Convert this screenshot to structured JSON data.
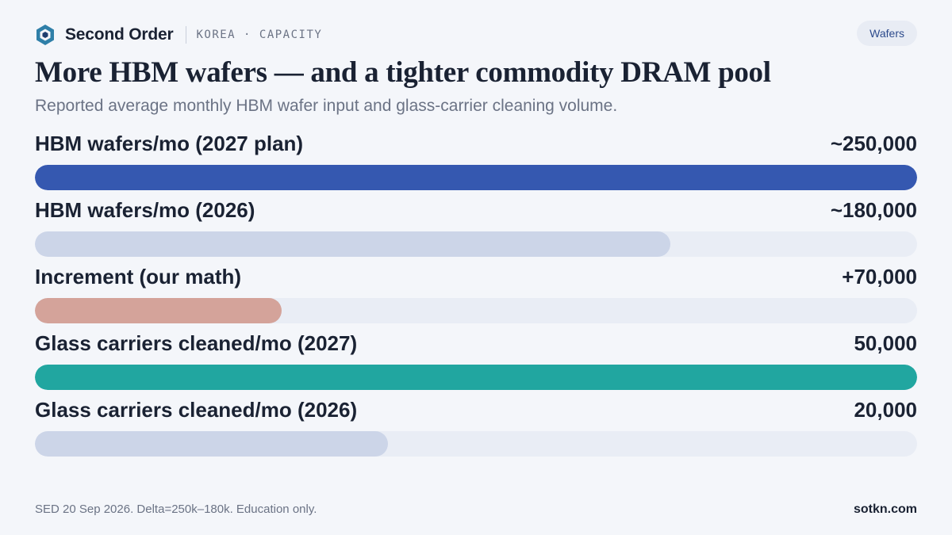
{
  "header": {
    "brand": "Second Order",
    "section": "KOREA · CAPACITY",
    "tag": "Wafers",
    "logo_icon": "hexagon-logo-icon"
  },
  "title": "More HBM wafers — and a tighter commodity DRAM pool",
  "subtitle": "Reported average monthly HBM wafer input and glass-carrier cleaning volume.",
  "chart_data": [
    {
      "type": "bar",
      "orientation": "horizontal",
      "title": "",
      "categories": [
        "HBM wafers/mo (2027 plan)",
        "HBM wafers/mo (2026)",
        "Increment (our math)"
      ],
      "values": [
        250000,
        180000,
        70000
      ],
      "value_labels": [
        "~250,000",
        "~180,000",
        "+70,000"
      ],
      "xlim": [
        0,
        250000
      ],
      "colors": [
        "#3558b0",
        "#ccd5e8",
        "#d4a39a"
      ],
      "grid": false
    },
    {
      "type": "bar",
      "orientation": "horizontal",
      "title": "",
      "categories": [
        "Glass carriers cleaned/mo (2027)",
        "Glass carriers cleaned/mo (2026)"
      ],
      "values": [
        50000,
        20000
      ],
      "value_labels": [
        "50,000",
        "20,000"
      ],
      "xlim": [
        0,
        50000
      ],
      "colors": [
        "#21a6a0",
        "#ccd5e8"
      ],
      "grid": false
    }
  ],
  "footer": {
    "note": "SED 20 Sep 2026. Delta=250k–180k. Education only.",
    "site": "sotkn.com"
  }
}
